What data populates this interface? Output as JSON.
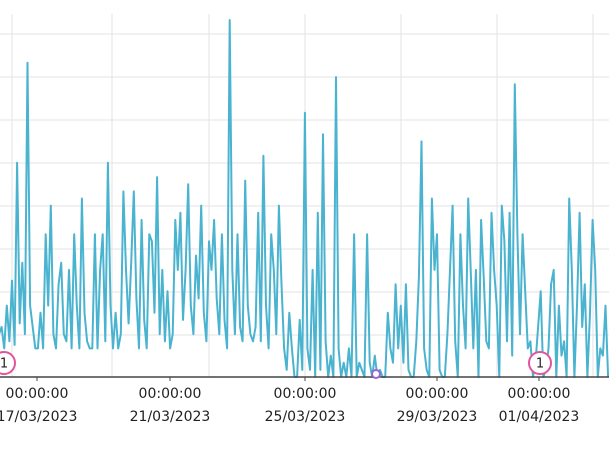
{
  "chart_data": {
    "type": "line",
    "title": "",
    "xlabel": "",
    "ylabel": "",
    "grid": true,
    "legend": "none",
    "colors": {
      "line": "#4ab3cf",
      "grid": "#e3e3e3",
      "axis": "#444444",
      "marker_ring": "#e0559b",
      "event_dot": "#9966cc"
    },
    "x_ticks": [
      {
        "time": "00:00:00",
        "date": "17/03/2023"
      },
      {
        "time": "00:00:00",
        "date": "21/03/2023"
      },
      {
        "time": "00:00:00",
        "date": "25/03/2023"
      },
      {
        "time": "00:00:00",
        "date": "29/03/2023"
      },
      {
        "time": "00:00:00",
        "date": "01/04/2023"
      }
    ],
    "markers": [
      {
        "label": "1",
        "date": "16/03/2023"
      },
      {
        "label": "1",
        "date": "01/04/2023"
      }
    ],
    "event_points": [
      {
        "date": "27/03/2023"
      }
    ],
    "ylim": [
      0,
      100
    ],
    "series": [
      {
        "points": [
          [
            0,
            12
          ],
          [
            0.06,
            14
          ],
          [
            0.12,
            8
          ],
          [
            0.18,
            20
          ],
          [
            0.24,
            10
          ],
          [
            0.3,
            27
          ],
          [
            0.36,
            9
          ],
          [
            0.42,
            60
          ],
          [
            0.48,
            15
          ],
          [
            0.54,
            32
          ],
          [
            0.6,
            12
          ],
          [
            0.66,
            88
          ],
          [
            0.72,
            20
          ],
          [
            0.78,
            14
          ],
          [
            0.84,
            8
          ],
          [
            0.9,
            8
          ],
          [
            0.96,
            18
          ],
          [
            1.02,
            8
          ],
          [
            1.08,
            40
          ],
          [
            1.14,
            20
          ],
          [
            1.2,
            48
          ],
          [
            1.26,
            12
          ],
          [
            1.32,
            8
          ],
          [
            1.38,
            26
          ],
          [
            1.44,
            32
          ],
          [
            1.5,
            12
          ],
          [
            1.56,
            10
          ],
          [
            1.62,
            30
          ],
          [
            1.68,
            8
          ],
          [
            1.74,
            40
          ],
          [
            1.8,
            20
          ],
          [
            1.86,
            8
          ],
          [
            1.92,
            50
          ],
          [
            1.98,
            18
          ],
          [
            2.04,
            10
          ],
          [
            2.1,
            8
          ],
          [
            2.16,
            8
          ],
          [
            2.22,
            40
          ],
          [
            2.28,
            8
          ],
          [
            2.34,
            30
          ],
          [
            2.4,
            40
          ],
          [
            2.46,
            10
          ],
          [
            2.52,
            60
          ],
          [
            2.58,
            20
          ],
          [
            2.64,
            8
          ],
          [
            2.7,
            18
          ],
          [
            2.76,
            8
          ],
          [
            2.82,
            12
          ],
          [
            2.88,
            52
          ],
          [
            2.94,
            30
          ],
          [
            3.0,
            15
          ],
          [
            3.06,
            32
          ],
          [
            3.12,
            52
          ],
          [
            3.18,
            22
          ],
          [
            3.24,
            8
          ],
          [
            3.3,
            44
          ],
          [
            3.36,
            16
          ],
          [
            3.42,
            8
          ],
          [
            3.48,
            40
          ],
          [
            3.54,
            38
          ],
          [
            3.6,
            18
          ],
          [
            3.66,
            56
          ],
          [
            3.72,
            12
          ],
          [
            3.78,
            30
          ],
          [
            3.84,
            10
          ],
          [
            3.9,
            24
          ],
          [
            3.96,
            8
          ],
          [
            4.02,
            12
          ],
          [
            4.08,
            44
          ],
          [
            4.14,
            30
          ],
          [
            4.2,
            46
          ],
          [
            4.26,
            16
          ],
          [
            4.32,
            30
          ],
          [
            4.38,
            54
          ],
          [
            4.44,
            20
          ],
          [
            4.5,
            12
          ],
          [
            4.56,
            34
          ],
          [
            4.62,
            22
          ],
          [
            4.68,
            48
          ],
          [
            4.74,
            18
          ],
          [
            4.8,
            10
          ],
          [
            4.86,
            38
          ],
          [
            4.92,
            30
          ],
          [
            4.98,
            44
          ],
          [
            5.04,
            22
          ],
          [
            5.1,
            12
          ],
          [
            5.16,
            40
          ],
          [
            5.22,
            16
          ],
          [
            5.28,
            8
          ],
          [
            5.34,
            100
          ],
          [
            5.4,
            30
          ],
          [
            5.46,
            12
          ],
          [
            5.52,
            40
          ],
          [
            5.58,
            14
          ],
          [
            5.64,
            10
          ],
          [
            5.7,
            55
          ],
          [
            5.76,
            20
          ],
          [
            5.82,
            12
          ],
          [
            5.88,
            10
          ],
          [
            5.94,
            14
          ],
          [
            6.0,
            46
          ],
          [
            6.06,
            10
          ],
          [
            6.12,
            62
          ],
          [
            6.18,
            20
          ],
          [
            6.24,
            8
          ],
          [
            6.3,
            40
          ],
          [
            6.36,
            30
          ],
          [
            6.42,
            12
          ],
          [
            6.48,
            48
          ],
          [
            6.54,
            26
          ],
          [
            6.6,
            8
          ],
          [
            6.66,
            2
          ],
          [
            6.72,
            18
          ],
          [
            6.78,
            8
          ],
          [
            6.84,
            0
          ],
          [
            6.9,
            0
          ],
          [
            6.96,
            16
          ],
          [
            7.02,
            2
          ],
          [
            7.08,
            74
          ],
          [
            7.14,
            8
          ],
          [
            7.2,
            2
          ],
          [
            7.26,
            30
          ],
          [
            7.32,
            0
          ],
          [
            7.38,
            46
          ],
          [
            7.44,
            2
          ],
          [
            7.5,
            68
          ],
          [
            7.56,
            10
          ],
          [
            7.62,
            0
          ],
          [
            7.68,
            6
          ],
          [
            7.74,
            0
          ],
          [
            7.8,
            84
          ],
          [
            7.86,
            8
          ],
          [
            7.92,
            0
          ],
          [
            7.98,
            4
          ],
          [
            8.04,
            0
          ],
          [
            8.1,
            8
          ],
          [
            8.16,
            0
          ],
          [
            8.22,
            40
          ],
          [
            8.28,
            0
          ],
          [
            8.34,
            4
          ],
          [
            8.4,
            2
          ],
          [
            8.46,
            0
          ],
          [
            8.52,
            40
          ],
          [
            8.58,
            4
          ],
          [
            8.64,
            0
          ],
          [
            8.7,
            6
          ],
          [
            8.76,
            0
          ],
          [
            8.82,
            2
          ],
          [
            8.88,
            0
          ],
          [
            8.94,
            0
          ],
          [
            9.0,
            18
          ],
          [
            9.06,
            8
          ],
          [
            9.12,
            4
          ],
          [
            9.18,
            26
          ],
          [
            9.24,
            8
          ],
          [
            9.3,
            20
          ],
          [
            9.36,
            4
          ],
          [
            9.42,
            26
          ],
          [
            9.48,
            2
          ],
          [
            9.54,
            0
          ],
          [
            9.6,
            0
          ],
          [
            9.66,
            10
          ],
          [
            9.72,
            28
          ],
          [
            9.78,
            66
          ],
          [
            9.84,
            8
          ],
          [
            9.9,
            2
          ],
          [
            9.96,
            0
          ],
          [
            10.02,
            50
          ],
          [
            10.08,
            30
          ],
          [
            10.14,
            40
          ],
          [
            10.2,
            2
          ],
          [
            10.26,
            0
          ],
          [
            10.32,
            0
          ],
          [
            10.38,
            12
          ],
          [
            10.44,
            30
          ],
          [
            10.5,
            48
          ],
          [
            10.56,
            10
          ],
          [
            10.62,
            0
          ],
          [
            10.68,
            40
          ],
          [
            10.74,
            20
          ],
          [
            10.8,
            8
          ],
          [
            10.86,
            50
          ],
          [
            10.92,
            30
          ],
          [
            10.98,
            8
          ],
          [
            11.04,
            30
          ],
          [
            11.1,
            0
          ],
          [
            11.16,
            44
          ],
          [
            11.22,
            28
          ],
          [
            11.28,
            10
          ],
          [
            11.34,
            8
          ],
          [
            11.4,
            46
          ],
          [
            11.46,
            30
          ],
          [
            11.52,
            20
          ],
          [
            11.58,
            0
          ],
          [
            11.64,
            48
          ],
          [
            11.7,
            38
          ],
          [
            11.76,
            10
          ],
          [
            11.82,
            46
          ],
          [
            11.88,
            6
          ],
          [
            11.94,
            82
          ],
          [
            12.0,
            40
          ],
          [
            12.06,
            12
          ],
          [
            12.12,
            40
          ],
          [
            12.18,
            24
          ],
          [
            12.24,
            8
          ],
          [
            12.3,
            10
          ],
          [
            12.36,
            0
          ],
          [
            12.42,
            4
          ],
          [
            12.48,
            14
          ],
          [
            12.54,
            24
          ],
          [
            12.6,
            0
          ],
          [
            12.66,
            2
          ],
          [
            12.72,
            8
          ],
          [
            12.78,
            26
          ],
          [
            12.84,
            30
          ],
          [
            12.9,
            0
          ],
          [
            12.96,
            20
          ],
          [
            13.02,
            6
          ],
          [
            13.08,
            10
          ],
          [
            13.14,
            0
          ],
          [
            13.2,
            50
          ],
          [
            13.26,
            30
          ],
          [
            13.32,
            0
          ],
          [
            13.38,
            20
          ],
          [
            13.44,
            46
          ],
          [
            13.5,
            14
          ],
          [
            13.56,
            26
          ],
          [
            13.62,
            0
          ],
          [
            13.68,
            18
          ],
          [
            13.74,
            44
          ],
          [
            13.8,
            30
          ],
          [
            13.86,
            0
          ],
          [
            13.92,
            8
          ],
          [
            13.98,
            6
          ],
          [
            14.04,
            20
          ],
          [
            14.1,
            0
          ]
        ]
      }
    ]
  }
}
